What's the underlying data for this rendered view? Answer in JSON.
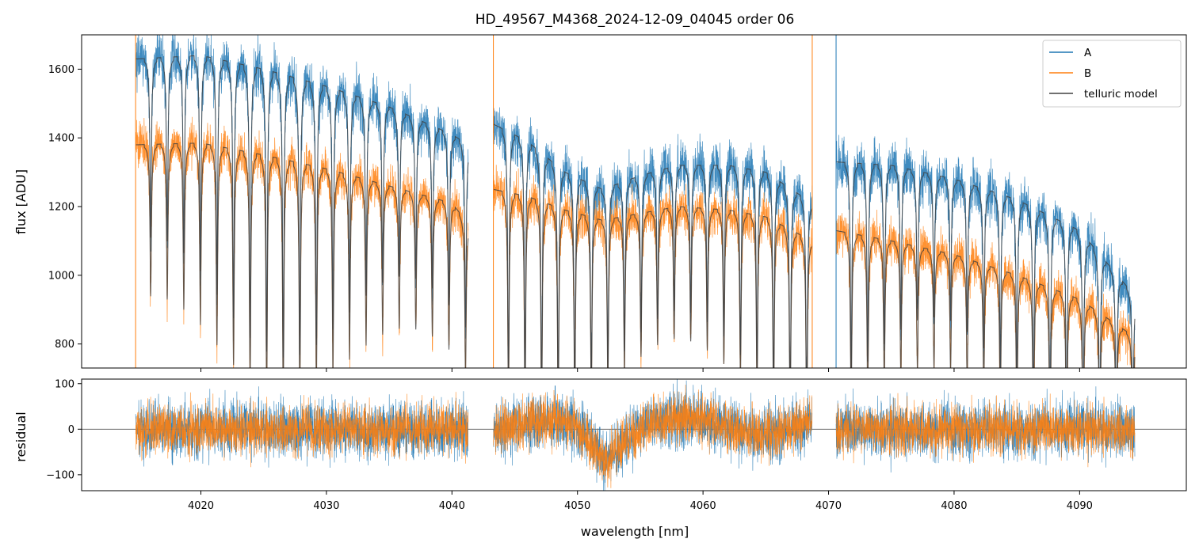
{
  "chart_data": [
    {
      "type": "line",
      "panel": "flux",
      "title": "HD_49567_M4368_2024-12-09_04045  order 06",
      "xlabel": "",
      "ylabel": "flux [ADU]",
      "xlim": [
        4010.5,
        4098.5
      ],
      "ylim": [
        730,
        1700
      ],
      "yticks": [
        800,
        1000,
        1200,
        1400,
        1600
      ],
      "ytick_labels": [
        "800",
        "1000",
        "1200",
        "1400",
        "1600"
      ],
      "segments": [
        [
          4014.8,
          4041.3
        ],
        [
          4043.3,
          4068.7
        ],
        [
          4070.6,
          4094.4
        ]
      ],
      "legend": {
        "position": "top-right",
        "entries": [
          "A",
          "B",
          "telluric model"
        ]
      },
      "series": [
        {
          "name": "A",
          "color": "#1f77b4",
          "continuum_knots": [
            [
              4015,
              1630
            ],
            [
              4020,
              1640
            ],
            [
              4025,
              1600
            ],
            [
              4030,
              1550
            ],
            [
              4035,
              1490
            ],
            [
              4040,
              1410
            ],
            [
              4041.3,
              1380
            ],
            [
              4043.3,
              1440
            ],
            [
              4046,
              1390
            ],
            [
              4049,
              1300
            ],
            [
              4052,
              1250
            ],
            [
              4055,
              1290
            ],
            [
              4058,
              1320
            ],
            [
              4062,
              1320
            ],
            [
              4065,
              1300
            ],
            [
              4068.7,
              1210
            ],
            [
              4070.6,
              1330
            ],
            [
              4075,
              1320
            ],
            [
              4080,
              1280
            ],
            [
              4085,
              1220
            ],
            [
              4090,
              1130
            ],
            [
              4094.4,
              940
            ]
          ]
        },
        {
          "name": "B",
          "color": "#ff7f0e",
          "continuum_knots": [
            [
              4015,
              1380
            ],
            [
              4020,
              1385
            ],
            [
              4025,
              1350
            ],
            [
              4030,
              1310
            ],
            [
              4035,
              1260
            ],
            [
              4040,
              1210
            ],
            [
              4041.3,
              1150
            ],
            [
              4043.3,
              1250
            ],
            [
              4046,
              1230
            ],
            [
              4049,
              1190
            ],
            [
              4052,
              1160
            ],
            [
              4055,
              1180
            ],
            [
              4058,
              1200
            ],
            [
              4062,
              1190
            ],
            [
              4065,
              1170
            ],
            [
              4068.7,
              1100
            ],
            [
              4070.6,
              1130
            ],
            [
              4075,
              1100
            ],
            [
              4080,
              1060
            ],
            [
              4085,
              1000
            ],
            [
              4090,
              930
            ],
            [
              4094.4,
              820
            ]
          ]
        },
        {
          "name": "telluric model",
          "color": "#404040",
          "line_centers_nm_sample": [
            4016.3,
            4017.5,
            4018.8,
            4020.1,
            4021.4,
            4022.7,
            4024.0,
            4025.3,
            4026.6,
            4027.9,
            4029.2,
            4030.5,
            4031.8,
            4033.1,
            4034.4,
            4035.7,
            4037.0,
            4038.3,
            4039.6,
            4040.9
          ]
        }
      ]
    },
    {
      "type": "line",
      "panel": "residual",
      "xlabel": "wavelength [nm]",
      "ylabel": "residual",
      "xlim": [
        4010.5,
        4098.5
      ],
      "ylim": [
        -135,
        110
      ],
      "yticks": [
        -100,
        0,
        100
      ],
      "ytick_labels": [
        "−100",
        "0",
        "100"
      ],
      "xticks": [
        4020,
        4030,
        4040,
        4050,
        4060,
        4070,
        4080,
        4090
      ],
      "xtick_labels": [
        "4020",
        "4030",
        "4040",
        "4050",
        "4060",
        "4070",
        "4080",
        "4090"
      ],
      "zero_line": true,
      "trend_knots": [
        [
          4015,
          0
        ],
        [
          4040,
          0
        ],
        [
          4043,
          -5
        ],
        [
          4046,
          15
        ],
        [
          4049,
          20
        ],
        [
          4051,
          -20
        ],
        [
          4052.2,
          -75
        ],
        [
          4053.5,
          -30
        ],
        [
          4056,
          20
        ],
        [
          4060,
          25
        ],
        [
          4063,
          -5
        ],
        [
          4066,
          -10
        ],
        [
          4068.7,
          20
        ],
        [
          4070.6,
          0
        ],
        [
          4094.4,
          0
        ]
      ],
      "series": [
        {
          "name": "A",
          "color": "#1f77b4"
        },
        {
          "name": "B",
          "color": "#ff7f0e"
        }
      ]
    }
  ]
}
